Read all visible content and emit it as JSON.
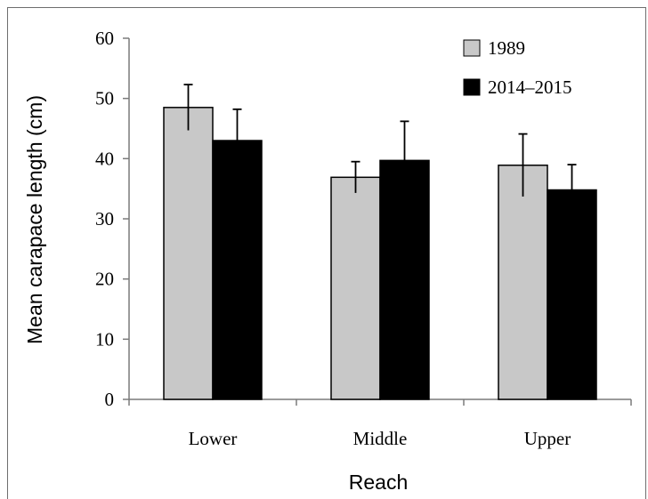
{
  "chart_data": {
    "type": "bar",
    "categories": [
      "Lower",
      "Middle",
      "Upper"
    ],
    "series": [
      {
        "name": "1989",
        "color": "#c8c8c8",
        "values": [
          48.5,
          36.9,
          38.9
        ],
        "errors": [
          3.8,
          2.6,
          5.2
        ]
      },
      {
        "name": "2014–2015",
        "color": "#000000",
        "values": [
          43.0,
          39.7,
          34.8
        ],
        "errors": [
          5.2,
          6.5,
          4.2
        ]
      }
    ],
    "title": "",
    "xlabel": "Reach",
    "ylabel": "Mean carapace length (cm)",
    "ylim": [
      0,
      60
    ],
    "yticks": [
      0,
      10,
      20,
      30,
      40,
      50,
      60
    ],
    "grid": false,
    "legend_position": "top-right"
  }
}
